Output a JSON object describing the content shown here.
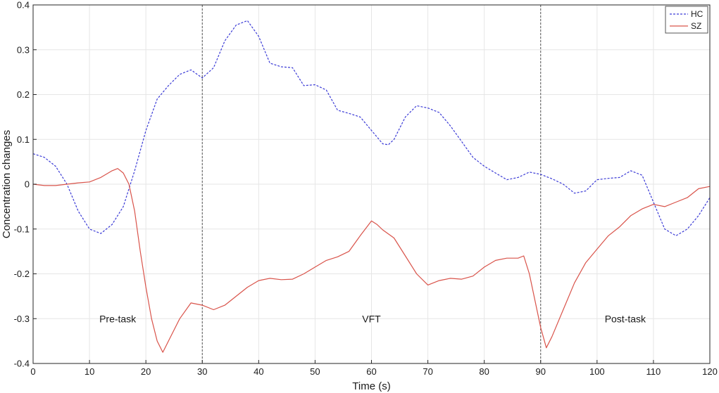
{
  "chart_data": {
    "type": "line",
    "title": "",
    "xlabel": "Time (s)",
    "ylabel": "Concentration changes",
    "xlim": [
      0,
      120
    ],
    "ylim": [
      -0.4,
      0.4
    ],
    "xticks": [
      0,
      10,
      20,
      30,
      40,
      50,
      60,
      70,
      80,
      90,
      100,
      110,
      120
    ],
    "yticks": [
      -0.4,
      -0.3,
      -0.2,
      -0.1,
      0,
      0.1,
      0.2,
      0.3,
      0.4
    ],
    "xtick_labels": [
      "0",
      "10",
      "20",
      "30",
      "40",
      "50",
      "60",
      "70",
      "80",
      "90",
      "100",
      "110",
      "120"
    ],
    "ytick_labels": [
      "-0.4",
      "-0.3",
      "-0.2",
      "-0.1",
      "0",
      "0.1",
      "0.2",
      "0.3",
      "0.4"
    ],
    "grid": true,
    "legend_position": "top-right",
    "vlines": [
      30,
      90
    ],
    "annotations": [
      {
        "text": "Pre-task",
        "x": 15,
        "y": -0.3
      },
      {
        "text": "VFT",
        "x": 60,
        "y": -0.3
      },
      {
        "text": "Post-task",
        "x": 105,
        "y": -0.3
      }
    ],
    "series": [
      {
        "name": "HC",
        "color": "#3b3bd6",
        "style": "dashed",
        "x": [
          0,
          2,
          4,
          6,
          8,
          10,
          12,
          14,
          16,
          18,
          20,
          22,
          24,
          26,
          28,
          30,
          32,
          34,
          36,
          38,
          40,
          42,
          44,
          46,
          48,
          50,
          52,
          54,
          56,
          58,
          60,
          62,
          63,
          64,
          66,
          68,
          70,
          72,
          74,
          76,
          78,
          80,
          82,
          84,
          86,
          88,
          90,
          92,
          94,
          96,
          98,
          100,
          102,
          104,
          106,
          108,
          110,
          112,
          114,
          116,
          118,
          120
        ],
        "y": [
          0.068,
          0.06,
          0.04,
          0.0,
          -0.06,
          -0.1,
          -0.11,
          -0.09,
          -0.05,
          0.03,
          0.12,
          0.19,
          0.22,
          0.245,
          0.255,
          0.237,
          0.26,
          0.32,
          0.355,
          0.365,
          0.33,
          0.27,
          0.262,
          0.26,
          0.22,
          0.222,
          0.21,
          0.165,
          0.158,
          0.15,
          0.12,
          0.09,
          0.088,
          0.1,
          0.15,
          0.175,
          0.17,
          0.16,
          0.13,
          0.095,
          0.06,
          0.04,
          0.025,
          0.01,
          0.015,
          0.027,
          0.022,
          0.012,
          0.0,
          -0.02,
          -0.015,
          0.01,
          0.013,
          0.015,
          0.03,
          0.02,
          -0.04,
          -0.1,
          -0.115,
          -0.1,
          -0.07,
          -0.03
        ]
      },
      {
        "name": "SZ",
        "color": "#d9534a",
        "style": "solid",
        "x": [
          0,
          2,
          4,
          6,
          8,
          10,
          12,
          14,
          15,
          16,
          17,
          18,
          19,
          20,
          21,
          22,
          23,
          24,
          26,
          28,
          30,
          32,
          34,
          36,
          38,
          40,
          42,
          44,
          46,
          48,
          50,
          52,
          54,
          56,
          58,
          60,
          61,
          62,
          64,
          66,
          68,
          70,
          72,
          74,
          76,
          78,
          80,
          82,
          84,
          86,
          87,
          88,
          90,
          91,
          92,
          94,
          96,
          98,
          100,
          102,
          104,
          106,
          108,
          110,
          112,
          114,
          116,
          118,
          120
        ],
        "y": [
          0.0,
          -0.003,
          -0.003,
          0.0,
          0.003,
          0.005,
          0.015,
          0.03,
          0.035,
          0.025,
          0.0,
          -0.06,
          -0.15,
          -0.23,
          -0.3,
          -0.35,
          -0.375,
          -0.35,
          -0.3,
          -0.265,
          -0.27,
          -0.28,
          -0.27,
          -0.25,
          -0.23,
          -0.215,
          -0.21,
          -0.213,
          -0.212,
          -0.2,
          -0.185,
          -0.17,
          -0.162,
          -0.15,
          -0.115,
          -0.082,
          -0.09,
          -0.102,
          -0.12,
          -0.16,
          -0.2,
          -0.225,
          -0.215,
          -0.21,
          -0.212,
          -0.205,
          -0.185,
          -0.17,
          -0.165,
          -0.165,
          -0.16,
          -0.2,
          -0.32,
          -0.365,
          -0.34,
          -0.28,
          -0.22,
          -0.175,
          -0.145,
          -0.115,
          -0.095,
          -0.07,
          -0.055,
          -0.045,
          -0.05,
          -0.04,
          -0.03,
          -0.01,
          -0.005
        ]
      }
    ]
  }
}
